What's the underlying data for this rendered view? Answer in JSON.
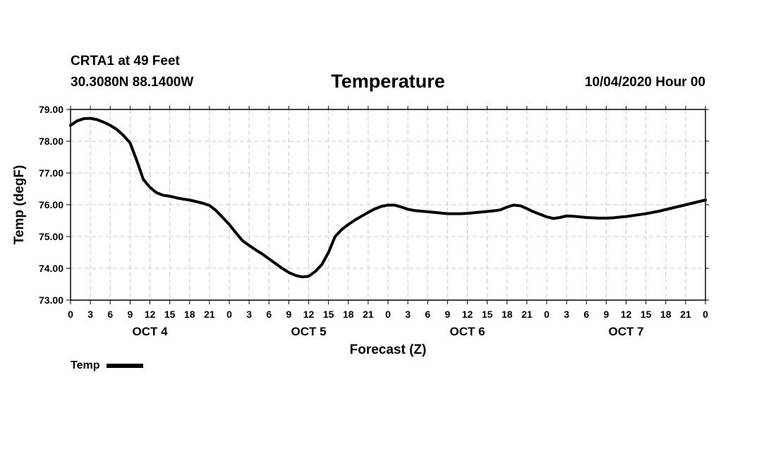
{
  "header": {
    "station": "CRTA1 at 49 Feet",
    "coords": "30.3080N 88.1400W",
    "title": "Temperature",
    "run": "10/04/2020 Hour 00"
  },
  "legend": {
    "label": "Temp",
    "color": "#000000"
  },
  "chart_data": {
    "type": "line",
    "title": "Temperature",
    "xlabel": "Forecast (Z)",
    "ylabel": "Temp (degF)",
    "ylim": [
      73.0,
      79.0
    ],
    "yticks": [
      "73.00",
      "74.00",
      "75.00",
      "76.00",
      "77.00",
      "78.00",
      "79.00"
    ],
    "xlim_hours": [
      0,
      96
    ],
    "xtick_step_hours": 3,
    "xtick_labels": [
      "0",
      "3",
      "6",
      "9",
      "12",
      "15",
      "18",
      "21",
      "0",
      "3",
      "6",
      "9",
      "12",
      "15",
      "18",
      "21",
      "0",
      "3",
      "6",
      "9",
      "12",
      "15",
      "18",
      "21",
      "0",
      "3",
      "6",
      "9",
      "12",
      "15",
      "18",
      "21",
      "0"
    ],
    "day_labels": [
      {
        "label": "OCT 4",
        "center_hour": 12
      },
      {
        "label": "OCT 5",
        "center_hour": 36
      },
      {
        "label": "OCT 6",
        "center_hour": 60
      },
      {
        "label": "OCT 7",
        "center_hour": 84
      }
    ],
    "grid": true,
    "series": [
      {
        "name": "Temp",
        "color": "#000000",
        "x": [
          0,
          1,
          2,
          3,
          4,
          5,
          6,
          7,
          8,
          9,
          10,
          11,
          12,
          13,
          14,
          15,
          16,
          17,
          18,
          19,
          20,
          21,
          22,
          23,
          24,
          25,
          26,
          27,
          28,
          29,
          30,
          31,
          32,
          33,
          34,
          35,
          36,
          37,
          38,
          39,
          40,
          41,
          42,
          43,
          44,
          45,
          46,
          47,
          48,
          49,
          50,
          51,
          52,
          53,
          54,
          55,
          56,
          57,
          58,
          59,
          60,
          61,
          62,
          63,
          64,
          65,
          66,
          67,
          68,
          69,
          70,
          71,
          72,
          73,
          74,
          75,
          76,
          77,
          78,
          79,
          80,
          81,
          82,
          83,
          84,
          85,
          86,
          87,
          88,
          89,
          90,
          91,
          92,
          93,
          94,
          95,
          96
        ],
        "values": [
          78.5,
          78.64,
          78.71,
          78.72,
          78.68,
          78.6,
          78.5,
          78.37,
          78.18,
          77.95,
          77.4,
          76.8,
          76.55,
          76.38,
          76.3,
          76.27,
          76.22,
          76.18,
          76.15,
          76.1,
          76.05,
          75.98,
          75.82,
          75.6,
          75.38,
          75.12,
          74.87,
          74.72,
          74.58,
          74.45,
          74.3,
          74.15,
          74.0,
          73.87,
          73.78,
          73.73,
          73.75,
          73.9,
          74.12,
          74.5,
          75.0,
          75.22,
          75.38,
          75.52,
          75.64,
          75.76,
          75.87,
          75.95,
          75.99,
          75.99,
          75.93,
          75.86,
          75.82,
          75.8,
          75.78,
          75.76,
          75.74,
          75.72,
          75.72,
          75.72,
          75.73,
          75.75,
          75.77,
          75.79,
          75.81,
          75.84,
          75.93,
          75.99,
          75.97,
          75.88,
          75.78,
          75.7,
          75.62,
          75.57,
          75.6,
          75.65,
          75.64,
          75.62,
          75.6,
          75.59,
          75.58,
          75.58,
          75.59,
          75.61,
          75.63,
          75.66,
          75.69,
          75.72,
          75.76,
          75.8,
          75.85,
          75.9,
          75.95,
          76.0,
          76.05,
          76.1,
          76.15
        ]
      }
    ]
  }
}
